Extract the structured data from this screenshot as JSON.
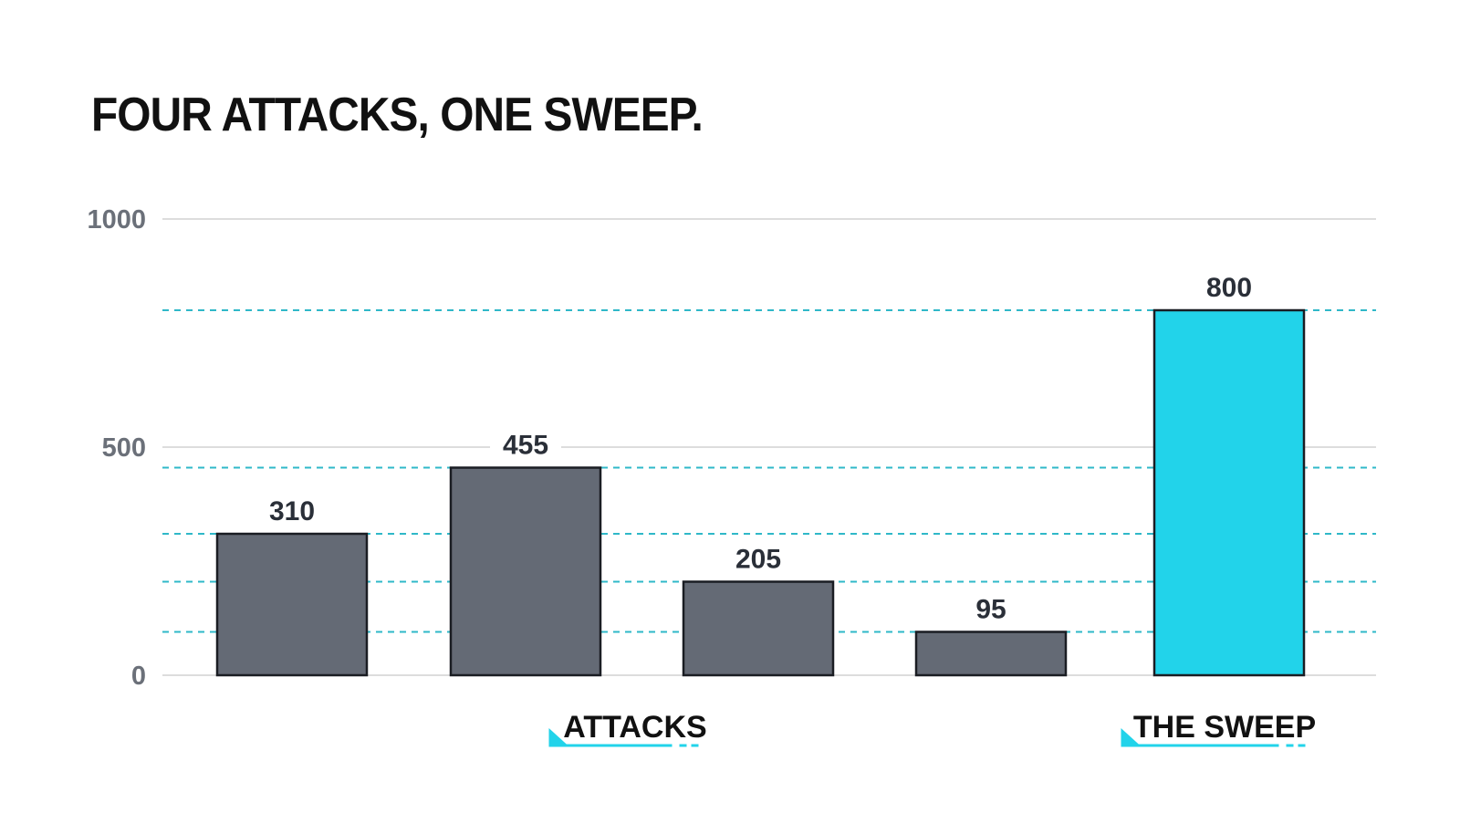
{
  "chart_data": {
    "type": "bar",
    "title": "FOUR ATTACKS, ONE SWEEP.",
    "xlabel": "",
    "ylabel": "",
    "ylim": [
      0,
      1000
    ],
    "yticks": [
      0,
      500,
      1000
    ],
    "grid": true,
    "categories": [
      "",
      "",
      "",
      "",
      ""
    ],
    "values": [
      310,
      455,
      205,
      95,
      800
    ],
    "data_labels": [
      "310",
      "455",
      "205",
      "95",
      "800"
    ],
    "bar_colors": [
      "#646a75",
      "#646a75",
      "#646a75",
      "#646a75",
      "#22d3ea"
    ],
    "groups": [
      {
        "label": "ATTACKS",
        "bar_indices": [
          0,
          1,
          2,
          3
        ]
      },
      {
        "label": "THE SWEEP",
        "bar_indices": [
          4
        ]
      }
    ],
    "colors": {
      "attack_bar": "#646a75",
      "sweep_bar": "#22d3ea",
      "bar_outline": "#1a1d23",
      "reference_line": "#2fb8c8",
      "grid": "#dddddd"
    }
  }
}
